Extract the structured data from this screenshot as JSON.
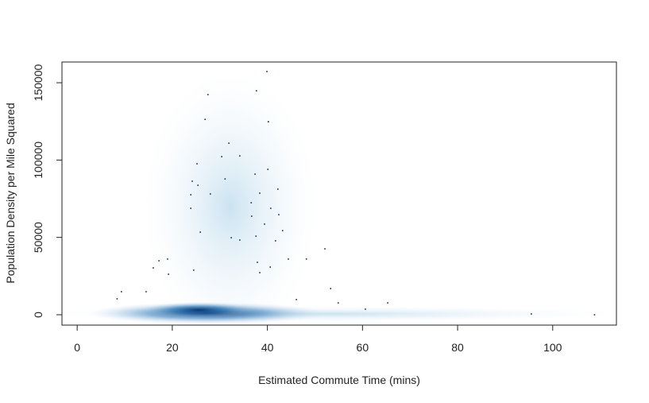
{
  "chart_data": {
    "type": "scatter",
    "x_label": "Estimated Commute Time (mins)",
    "y_label": "Population Density per Mile Squared",
    "xlim": [
      -3.2,
      113.4
    ],
    "ylim": [
      -6700,
      163400
    ],
    "xticks": [
      0,
      20,
      40,
      60,
      80,
      100
    ],
    "yticks": [
      0,
      50000,
      100000,
      150000
    ],
    "color": "#08306b",
    "x": [
      39.9,
      27.5,
      37.7,
      26.9,
      40.2,
      31.9,
      34.2,
      30.4,
      25.2,
      40.1,
      37.4,
      31.1,
      24.2,
      25.4,
      42.2,
      28.0,
      38.4,
      23.9,
      36.6,
      40.7,
      23.9,
      42.4,
      36.7,
      39.4,
      43.2,
      25.9,
      37.6,
      32.4,
      34.2,
      41.7,
      52.1,
      19.0,
      44.4,
      17.2,
      37.9,
      48.2,
      40.6,
      16.0,
      24.5,
      38.4,
      19.2,
      9.3,
      14.5,
      8.4,
      46.1,
      54.9,
      65.3,
      60.6,
      95.5,
      108.8,
      53.3
    ],
    "values": [
      157200,
      142300,
      144800,
      126300,
      124800,
      110900,
      102700,
      102200,
      97600,
      94000,
      90900,
      87800,
      86300,
      83700,
      81200,
      78100,
      78600,
      77600,
      72400,
      68800,
      68800,
      64700,
      63700,
      58600,
      54400,
      53400,
      50800,
      49800,
      48300,
      47800,
      42600,
      36000,
      36000,
      34900,
      33900,
      36000,
      30800,
      30300,
      28800,
      27200,
      26200,
      14900,
      14900,
      10300,
      9800,
      7700,
      7700,
      3600,
      500,
      0,
      16900
    ]
  }
}
